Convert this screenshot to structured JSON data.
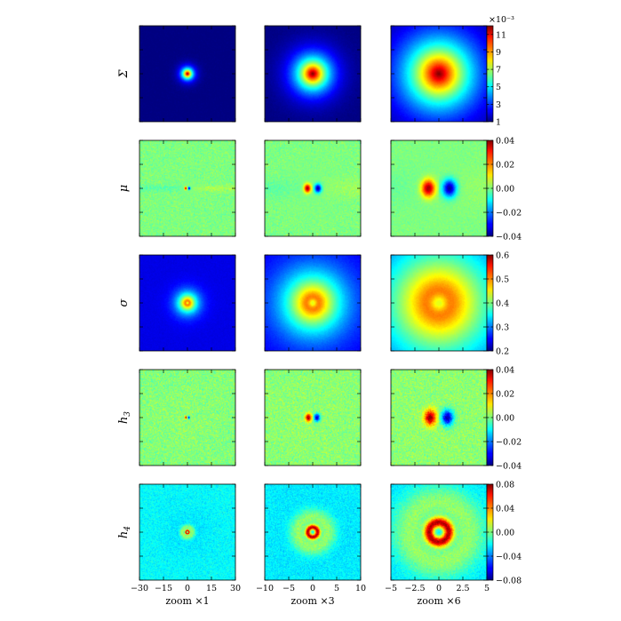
{
  "chart_data": {
    "type": "heatmap",
    "colormap": "jet",
    "rows": [
      {
        "label": "Σ",
        "symbol": "Sigma",
        "sub": "",
        "pattern": "sigma",
        "colorbar": {
          "ticks": [
            "11",
            "9",
            "7",
            "5",
            "3",
            "1"
          ],
          "vmin": 1,
          "vmax": 12,
          "multiplier": "×10⁻³"
        }
      },
      {
        "label": "μ",
        "symbol": "mu",
        "sub": "",
        "pattern": "mu",
        "colorbar": {
          "ticks": [
            "0.04",
            "0.02",
            "0.00",
            "−0.02",
            "−0.04"
          ],
          "vmin": -0.04,
          "vmax": 0.04
        }
      },
      {
        "label": "σ",
        "symbol": "sigma",
        "sub": "",
        "pattern": "sig",
        "colorbar": {
          "ticks": [
            "0.6",
            "0.5",
            "0.4",
            "0.3",
            "0.2"
          ],
          "vmin": 0.2,
          "vmax": 0.6
        }
      },
      {
        "label": "h",
        "symbol": "h3",
        "sub": "3",
        "pattern": "h3",
        "colorbar": {
          "ticks": [
            "0.04",
            "0.02",
            "0.00",
            "−0.02",
            "−0.04"
          ],
          "vmin": -0.04,
          "vmax": 0.04
        }
      },
      {
        "label": "h",
        "symbol": "h4",
        "sub": "4",
        "pattern": "h4",
        "colorbar": {
          "ticks": [
            "0.08",
            "0.04",
            "0.00",
            "−0.04",
            "−0.08"
          ],
          "vmin": -0.08,
          "vmax": 0.08
        }
      }
    ],
    "columns": [
      {
        "xlabel": "zoom ×1",
        "xlim": [
          -30,
          30
        ],
        "xticks": [
          "−30",
          "−15",
          "0",
          "15",
          "30"
        ]
      },
      {
        "xlabel": "zoom ×3",
        "xlim": [
          -10,
          10
        ],
        "xticks": [
          "−10",
          "−5",
          "0",
          "5",
          "10"
        ]
      },
      {
        "xlabel": "zoom ×6",
        "xlim": [
          -5,
          5
        ],
        "xticks": [
          "−5",
          "−2.5",
          "0",
          "2.5",
          "5"
        ]
      }
    ]
  }
}
